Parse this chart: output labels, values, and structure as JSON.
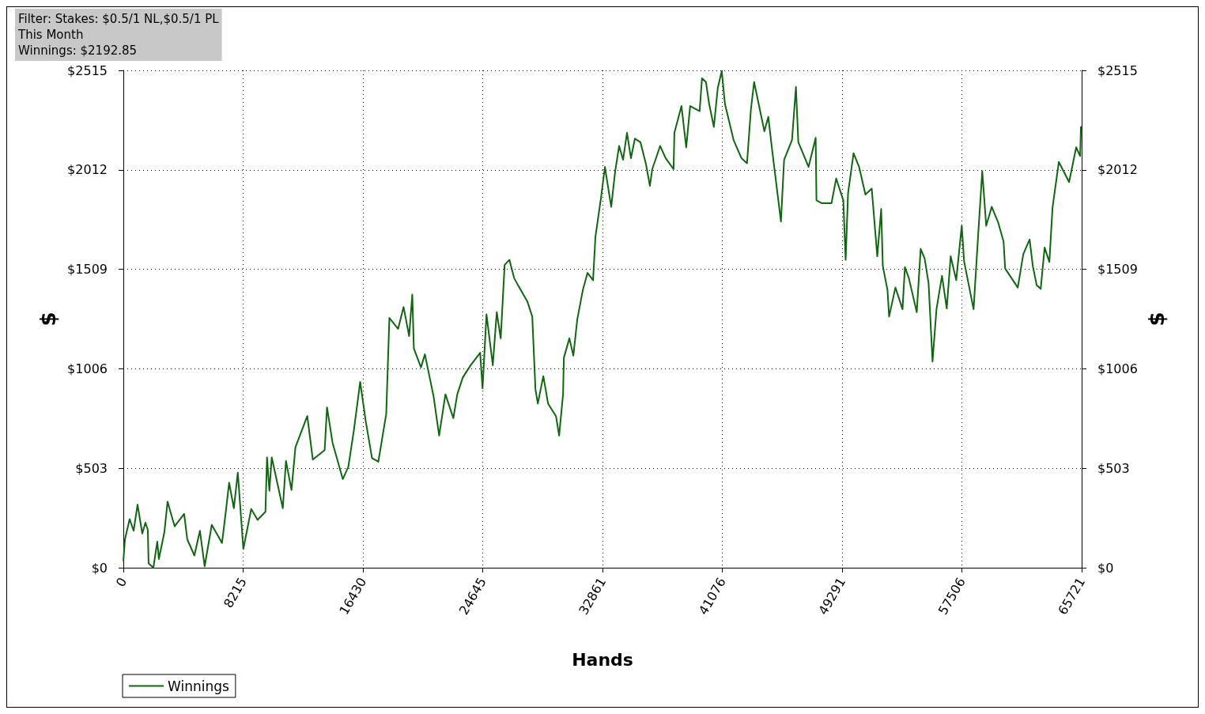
{
  "chart_data": {
    "type": "line",
    "xlabel": "Hands",
    "ylabel": "$",
    "y2label": "$",
    "annotations": [
      "Filter: Stakes: $0.5/1 NL,$0.5/1 PL",
      "This Month",
      "Winnings: $2192.85"
    ],
    "legend": "bottom left",
    "grid": true,
    "marker": "none",
    "line_style": "solid",
    "xlim": [
      0,
      65721
    ],
    "xticks": [
      0,
      8215,
      16430,
      24645,
      32861,
      41076,
      49291,
      57506,
      65721
    ],
    "ylim": [
      0,
      2515
    ],
    "yticks": [
      {
        "value": 0,
        "label": "$0"
      },
      {
        "value": 503,
        "label": "$503"
      },
      {
        "value": 1006,
        "label": "$1006"
      },
      {
        "value": 1509,
        "label": "$1509"
      },
      {
        "value": 2012,
        "label": "$2012"
      },
      {
        "value": 2515,
        "label": "$2515"
      }
    ],
    "y2lim": [
      0,
      2515
    ],
    "y2ticks": [
      {
        "value": 0,
        "label": "$0"
      },
      {
        "value": 503,
        "label": "$503"
      },
      {
        "value": 1006,
        "label": "$1006"
      },
      {
        "value": 1509,
        "label": "$1509"
      },
      {
        "value": 2012,
        "label": "$2012"
      },
      {
        "value": 2515,
        "label": "$2515"
      }
    ],
    "series": [
      {
        "name": "Winnings",
        "color": "#116611",
        "x": [
          0,
          108,
          433,
          704,
          974,
          1299,
          1516,
          1678,
          1732,
          2057,
          2328,
          2436,
          2815,
          3032,
          3519,
          4169,
          4385,
          4873,
          5251,
          5576,
          6063,
          6767,
          7038,
          7255,
          7580,
          7850,
          8229,
          8770,
          9204,
          9745,
          9853,
          10016,
          10178,
          10936,
          11153,
          11532,
          11802,
          12614,
          12993,
          13806,
          13968,
          14347,
          15051,
          15430,
          15809,
          16242,
          16621,
          17054,
          17487,
          18029,
          18245,
          18840,
          19220,
          19599,
          19815,
          19923,
          20410,
          20681,
          21277,
          21656,
          22089,
          22630,
          22901,
          23280,
          23821,
          24471,
          24633,
          24904,
          25337,
          25608,
          25879,
          26149,
          26474,
          26799,
          27070,
          27719,
          28044,
          28261,
          28424,
          28802,
          29127,
          29669,
          29885,
          30156,
          30210,
          30589,
          30860,
          31131,
          31509,
          31834,
          32213,
          32376,
          32755,
          33025,
          33458,
          33729,
          33999,
          34270,
          34541,
          34812,
          35083,
          35462,
          35841,
          36111,
          36274,
          36815,
          37194,
          37735,
          37790,
          38277,
          38602,
          38872,
          39522,
          39684,
          39955,
          40172,
          40497,
          40767,
          41038,
          41255,
          41850,
          42391,
          42770,
          43041,
          43258,
          43962,
          44232,
          44503,
          45098,
          45315,
          45856,
          46127,
          46289,
          46993,
          47480,
          47534,
          47913,
          48563,
          48888,
          49375,
          49537,
          49700,
          50079,
          50458,
          50891,
          51325,
          51704,
          51974,
          52083,
          52407,
          52516,
          52949,
          53436,
          53599,
          53869,
          54411,
          54681,
          54952,
          55223,
          55494,
          55764,
          56143,
          56468,
          56739,
          57118,
          57497,
          57659,
          58309,
          58634,
          58904,
          59175,
          59554,
          59987,
          60366,
          60474,
          61340,
          61719,
          62152,
          62369,
          62640,
          62911,
          63181,
          63506,
          63723,
          64156,
          64859,
          65347,
          65617,
          65671,
          65721
        ],
        "values": [
          33,
          143,
          246,
          187,
          319,
          173,
          228,
          191,
          22,
          0,
          132,
          44,
          180,
          334,
          209,
          272,
          143,
          62,
          187,
          7,
          217,
          125,
          290,
          430,
          301,
          481,
          95,
          297,
          242,
          283,
          558,
          389,
          558,
          301,
          540,
          393,
          609,
          767,
          547,
          595,
          811,
          632,
          448,
          510,
          694,
          940,
          742,
          554,
          536,
          778,
          1263,
          1208,
          1318,
          1171,
          1381,
          1109,
          1013,
          1079,
          866,
          668,
          877,
          756,
          877,
          962,
          1024,
          1087,
          907,
          1281,
          1024,
          1292,
          1160,
          1531,
          1557,
          1465,
          1428,
          1344,
          1270,
          903,
          830,
          969,
          830,
          767,
          668,
          877,
          1061,
          1160,
          1072,
          1256,
          1403,
          1491,
          1454,
          1674,
          1869,
          2027,
          1825,
          2005,
          2133,
          2063,
          2199,
          2071,
          2170,
          2152,
          2041,
          1931,
          2016,
          2133,
          2071,
          2016,
          2199,
          2335,
          2126,
          2335,
          2309,
          2475,
          2456,
          2346,
          2229,
          2427,
          2511,
          2346,
          2163,
          2071,
          2045,
          2320,
          2456,
          2207,
          2280,
          2107,
          1751,
          2063,
          2163,
          2431,
          2152,
          2027,
          2174,
          1858,
          1843,
          1843,
          1968,
          1858,
          1557,
          1894,
          2096,
          2027,
          1887,
          1917,
          1575,
          1814,
          1527,
          1403,
          1270,
          1417,
          1307,
          1520,
          1465,
          1292,
          1612,
          1564,
          1439,
          1043,
          1307,
          1476,
          1311,
          1575,
          1454,
          1729,
          1549,
          1307,
          1696,
          2005,
          1729,
          1825,
          1748,
          1649,
          1513,
          1417,
          1586,
          1660,
          1527,
          1428,
          1410,
          1619,
          1546,
          1821,
          2052,
          1950,
          2126,
          2082,
          2229,
          2193
        ]
      }
    ]
  }
}
